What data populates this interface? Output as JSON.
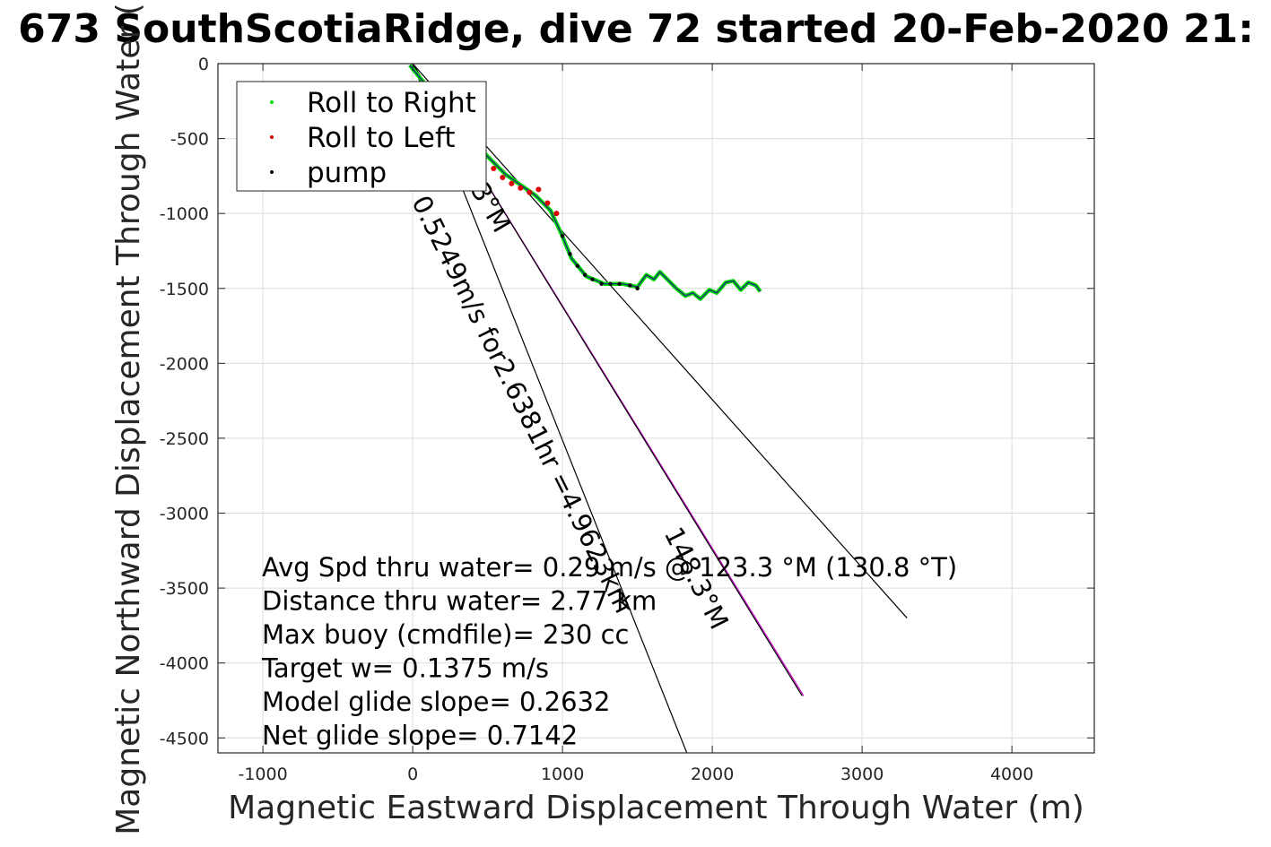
{
  "chart_data": {
    "type": "scatter",
    "title": "673 SouthScotiaRidge, dive 72 started 20-Feb-2020 21:",
    "xlabel": "Magnetic Eastward Displacement Through Water (m)",
    "ylabel": "Magnetic Northward Displacement Through Water (",
    "xlim": [
      -1300,
      4550
    ],
    "ylim": [
      -4600,
      0
    ],
    "xticks": [
      -1000,
      0,
      1000,
      2000,
      3000,
      4000
    ],
    "yticks": [
      0,
      -500,
      -1000,
      -1500,
      -2000,
      -2500,
      -3000,
      -3500,
      -4000,
      -4500
    ],
    "grid": true,
    "legend_position": "top-left",
    "legend": [
      {
        "name": "Roll to Right",
        "color": "#00dd00"
      },
      {
        "name": "Roll to Left",
        "color": "#dd0000"
      },
      {
        "name": "pump",
        "color": "#000000"
      }
    ],
    "track": [
      [
        -20,
        -10
      ],
      [
        20,
        -60
      ],
      [
        120,
        -180
      ],
      [
        250,
        -320
      ],
      [
        380,
        -480
      ],
      [
        500,
        -620
      ],
      [
        620,
        -740
      ],
      [
        720,
        -810
      ],
      [
        820,
        -880
      ],
      [
        920,
        -980
      ],
      [
        990,
        -1130
      ],
      [
        1060,
        -1300
      ],
      [
        1160,
        -1420
      ],
      [
        1280,
        -1470
      ],
      [
        1400,
        -1470
      ],
      [
        1500,
        -1490
      ],
      [
        1560,
        -1410
      ],
      [
        1610,
        -1440
      ],
      [
        1650,
        -1390
      ],
      [
        1700,
        -1440
      ],
      [
        1760,
        -1500
      ],
      [
        1820,
        -1550
      ],
      [
        1870,
        -1530
      ],
      [
        1920,
        -1570
      ],
      [
        1980,
        -1510
      ],
      [
        2030,
        -1530
      ],
      [
        2090,
        -1460
      ],
      [
        2140,
        -1450
      ],
      [
        2190,
        -1510
      ],
      [
        2240,
        -1460
      ],
      [
        2290,
        -1480
      ],
      [
        2320,
        -1520
      ]
    ],
    "roll_left_points": [
      [
        330,
        -560
      ],
      [
        400,
        -620
      ],
      [
        470,
        -640
      ],
      [
        540,
        -700
      ],
      [
        600,
        -760
      ],
      [
        660,
        -800
      ],
      [
        720,
        -830
      ],
      [
        780,
        -860
      ],
      [
        840,
        -840
      ],
      [
        900,
        -930
      ],
      [
        960,
        -1000
      ]
    ],
    "pump_points": [
      [
        1000,
        -1150
      ],
      [
        1050,
        -1270
      ],
      [
        1100,
        -1350
      ],
      [
        1150,
        -1410
      ],
      [
        1200,
        -1440
      ],
      [
        1260,
        -1470
      ],
      [
        1320,
        -1470
      ],
      [
        1380,
        -1470
      ],
      [
        1450,
        -1480
      ],
      [
        1500,
        -1500
      ]
    ],
    "lines": [
      {
        "color": "#000000",
        "x": [
          0,
          1830
        ],
        "y": [
          0,
          -4600
        ]
      },
      {
        "color": "#cc00cc",
        "x": [
          0,
          2610
        ],
        "y": [
          0,
          -4220
        ]
      },
      {
        "color": "#000000",
        "x": [
          0,
          2600
        ],
        "y": [
          0,
          -4220
        ]
      },
      {
        "color": "#000000",
        "x": [
          0,
          3300
        ],
        "y": [
          0,
          -3700
        ]
      }
    ],
    "annotations": [
      {
        "text": "0.5249m/s for2.6381hr =4.9623km",
        "x": 680,
        "y": -2300,
        "angle": 63.5
      },
      {
        "text": "148.3°M",
        "x": 1840,
        "y": -3460,
        "angle": 63.5
      },
      {
        "text": "3°M",
        "x": 470,
        "y": -990,
        "angle": 60
      }
    ]
  },
  "info_lines": [
    "Avg Spd thru water=  0.29 m/s @ 123.3 °M (130.8 °T)",
    "Distance thru water=  2.77 km",
    "Max buoy (cmdfile)= 230 cc",
    "Target w= 0.1375 m/s",
    "Model glide slope= 0.2632",
    "Net glide slope= 0.7142"
  ]
}
